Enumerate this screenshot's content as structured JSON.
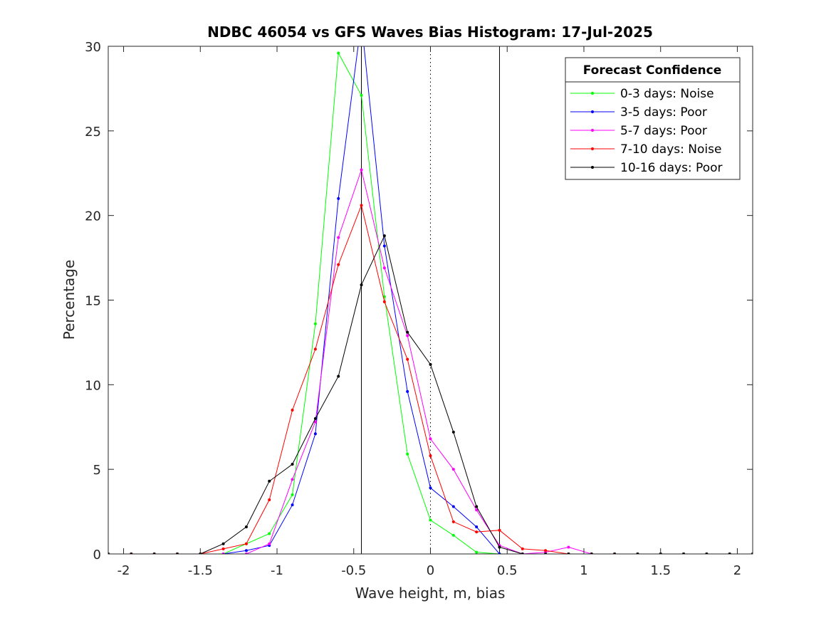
{
  "chart_data": {
    "type": "line",
    "title": "NDBC 46054 vs GFS Waves Bias Histogram: 17-Jul-2025",
    "xlabel": "Wave height, m, bias",
    "ylabel": "Percentage",
    "xlim": [
      -2.1,
      2.1
    ],
    "ylim": [
      0,
      30
    ],
    "xticks": [
      -2,
      -1.5,
      -1,
      -0.5,
      0,
      0.5,
      1,
      1.5,
      2
    ],
    "xtick_labels": [
      "-2",
      "-1.5",
      "-1",
      "-0.5",
      "0",
      "0.5",
      "1",
      "1.5",
      "2"
    ],
    "yticks": [
      0,
      5,
      10,
      15,
      20,
      25,
      30
    ],
    "ytick_labels": [
      "0",
      "5",
      "10",
      "15",
      "20",
      "25",
      "30"
    ],
    "grid": false,
    "legend_title": "Forecast Confidence",
    "legend_position": "top-right",
    "reference_lines": [
      {
        "x": -0.45,
        "style": "solid"
      },
      {
        "x": 0,
        "style": "dotted"
      },
      {
        "x": 0.45,
        "style": "solid"
      }
    ],
    "x": [
      -2.1,
      -1.95,
      -1.8,
      -1.65,
      -1.5,
      -1.35,
      -1.2,
      -1.05,
      -0.9,
      -0.75,
      -0.6,
      -0.45,
      -0.3,
      -0.15,
      0,
      0.15,
      0.3,
      0.45,
      0.6,
      0.75,
      0.9,
      1.05,
      1.2,
      1.35,
      1.5,
      1.65,
      1.8,
      1.95,
      2.1
    ],
    "series": [
      {
        "name": "0-3 days: Noise",
        "color": "#00ff00",
        "values": [
          0,
          0,
          0,
          0,
          0,
          0,
          0.6,
          1.2,
          3.5,
          13.6,
          29.6,
          27.1,
          15.2,
          5.9,
          2.0,
          1.1,
          0.1,
          0,
          0,
          0,
          0,
          0,
          0,
          0,
          0,
          0,
          0,
          0,
          0
        ]
      },
      {
        "name": "3-5 days: Poor",
        "color": "#0000ff",
        "values": [
          0,
          0,
          0,
          0,
          0,
          0,
          0.2,
          0.5,
          2.9,
          7.1,
          21.0,
          31.5,
          18.2,
          9.6,
          3.9,
          2.8,
          1.6,
          0,
          0,
          0,
          0,
          0,
          0,
          0,
          0,
          0,
          0,
          0,
          0
        ]
      },
      {
        "name": "5-7 days: Poor",
        "color": "#ff00ff",
        "values": [
          0,
          0,
          0,
          0,
          0,
          0,
          0,
          0.6,
          4.4,
          7.8,
          18.7,
          22.7,
          16.9,
          12.9,
          6.8,
          5.0,
          2.6,
          0.5,
          0,
          0.1,
          0.4,
          0,
          0,
          0,
          0,
          0,
          0,
          0,
          0
        ]
      },
      {
        "name": "7-10 days: Noise",
        "color": "#ff0000",
        "values": [
          0,
          0,
          0,
          0,
          0,
          0.3,
          0.6,
          3.2,
          8.5,
          12.1,
          17.1,
          20.6,
          14.9,
          11.5,
          5.8,
          1.9,
          1.3,
          1.4,
          0.3,
          0.2,
          0,
          0,
          0,
          0,
          0,
          0,
          0,
          0,
          0
        ]
      },
      {
        "name": "10-16 days: Poor",
        "color": "#000000",
        "values": [
          0,
          0,
          0,
          0,
          0,
          0.6,
          1.6,
          4.3,
          5.3,
          8.0,
          10.5,
          15.9,
          18.8,
          13.1,
          11.2,
          7.2,
          2.8,
          0.4,
          0,
          0,
          0,
          0,
          0,
          0,
          0,
          0,
          0,
          0,
          0
        ]
      }
    ]
  }
}
